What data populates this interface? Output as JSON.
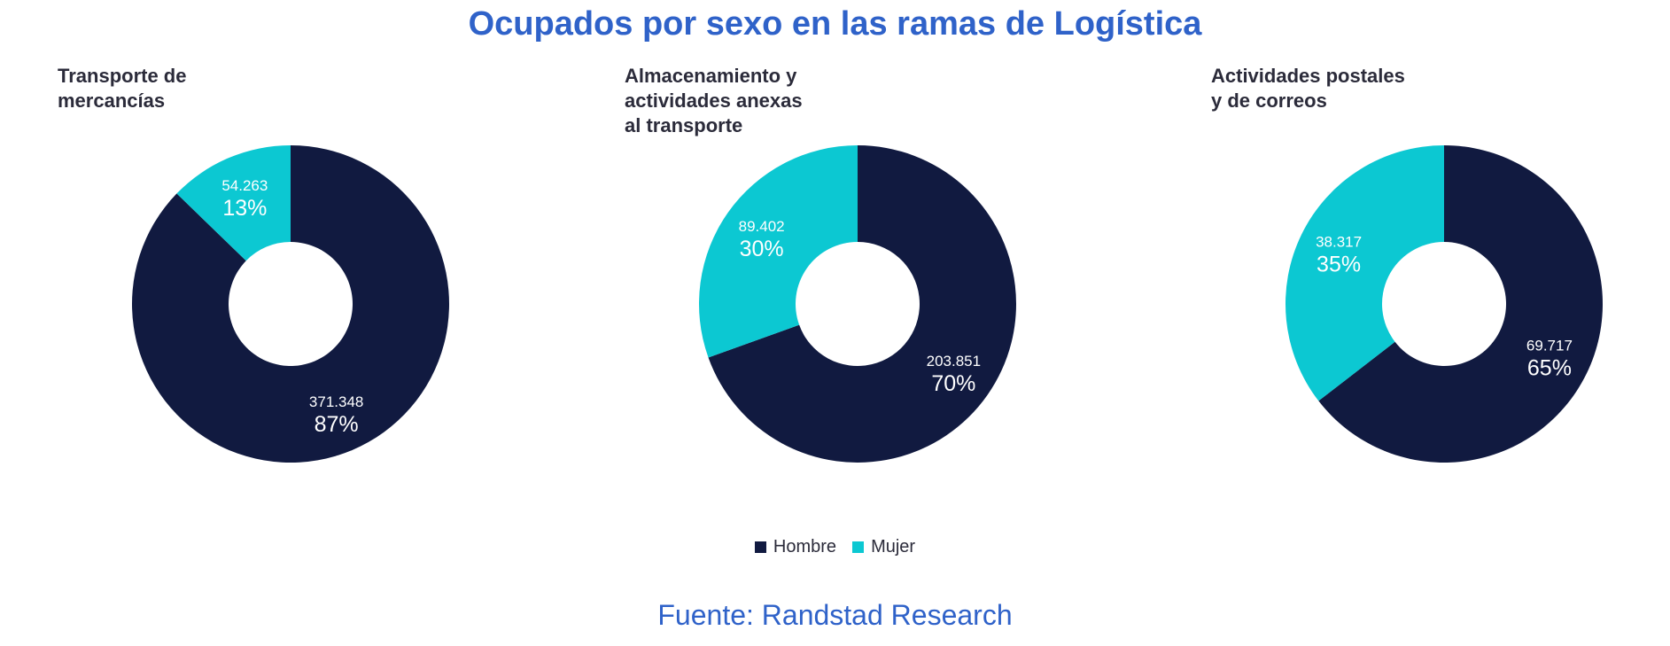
{
  "header": {
    "title": "Ocupados por sexo en las ramas de Logística"
  },
  "colors": {
    "hombre": "#111a40",
    "mujer": "#0cc8d2",
    "title": "#2f62c9",
    "label": "#ffffff"
  },
  "chart_data": [
    {
      "type": "pie",
      "title_lines": [
        "Transporte de",
        "mercancías"
      ],
      "categories": [
        "Hombre",
        "Mujer"
      ],
      "values": [
        371348,
        54263
      ],
      "value_labels": [
        "371.348",
        "54.263"
      ],
      "percent_labels": [
        "87%",
        "13%"
      ]
    },
    {
      "type": "pie",
      "title_lines": [
        "Almacenamiento y",
        "actividades anexas",
        "al transporte"
      ],
      "categories": [
        "Hombre",
        "Mujer"
      ],
      "values": [
        203851,
        89402
      ],
      "value_labels": [
        "203.851",
        "89.402"
      ],
      "percent_labels": [
        "70%",
        "30%"
      ]
    },
    {
      "type": "pie",
      "title_lines": [
        "Actividades postales",
        "y de correos"
      ],
      "categories": [
        "Hombre",
        "Mujer"
      ],
      "values": [
        69717,
        38317
      ],
      "value_labels": [
        "69.717",
        "38.317"
      ],
      "percent_labels": [
        "65%",
        "35%"
      ]
    }
  ],
  "legend": {
    "items": [
      "Hombre",
      "Mujer"
    ],
    "placement": "bottom-center"
  },
  "footer": {
    "source": "Fuente: Randstad Research"
  }
}
